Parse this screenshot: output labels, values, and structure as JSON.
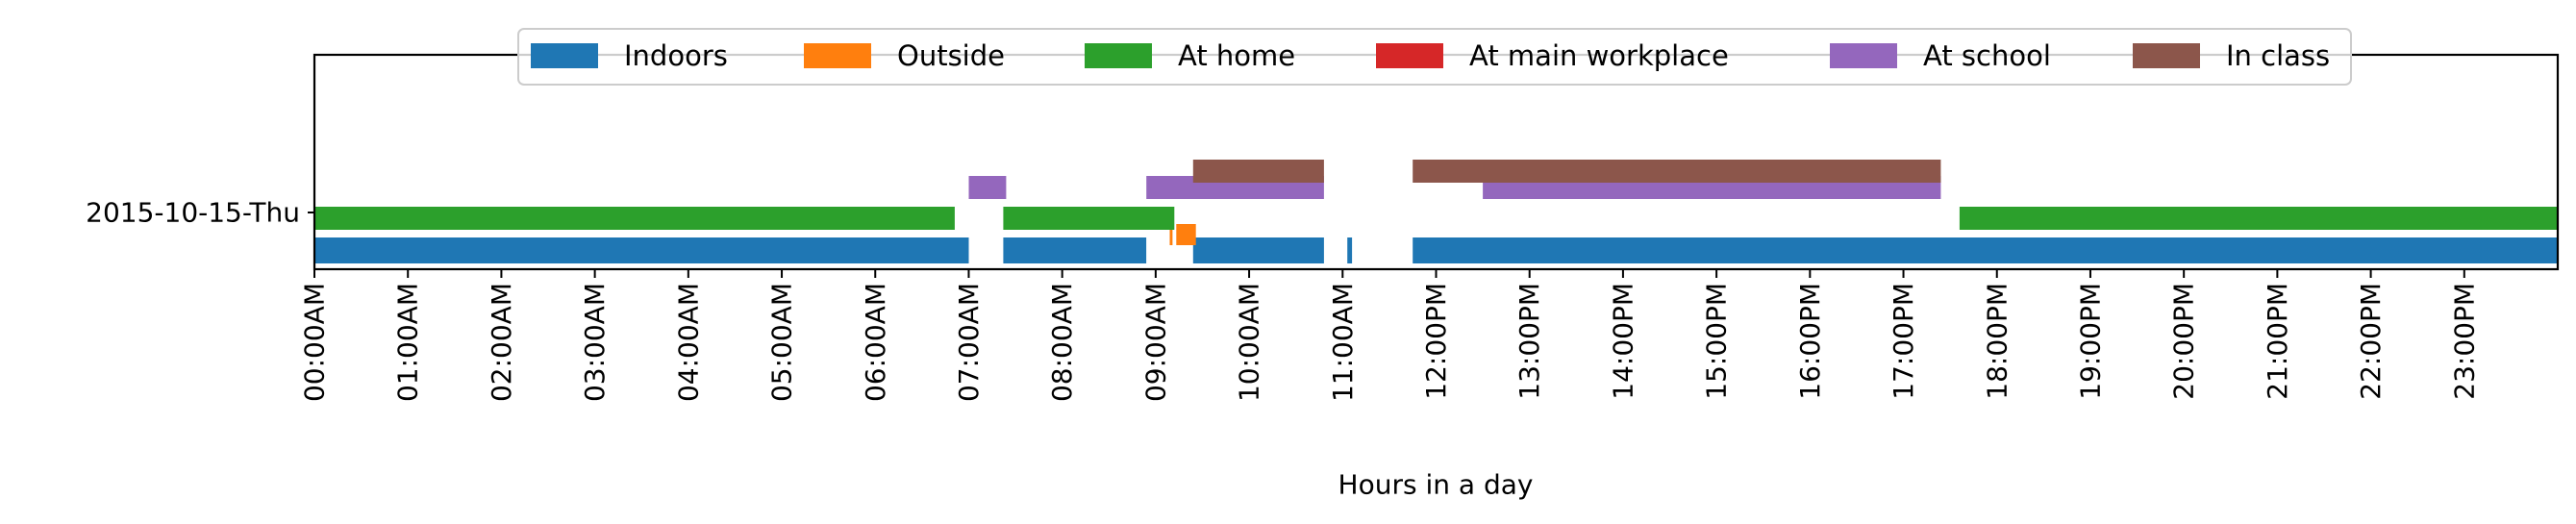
{
  "chart_data": {
    "type": "timeline",
    "row_label": "2015-10-15-Thu",
    "xlabel": "Hours in a day",
    "xlim": [
      0,
      24
    ],
    "x_ticks": [
      {
        "value": 0,
        "label": "00:00AM"
      },
      {
        "value": 1,
        "label": "01:00AM"
      },
      {
        "value": 2,
        "label": "02:00AM"
      },
      {
        "value": 3,
        "label": "03:00AM"
      },
      {
        "value": 4,
        "label": "04:00AM"
      },
      {
        "value": 5,
        "label": "05:00AM"
      },
      {
        "value": 6,
        "label": "06:00AM"
      },
      {
        "value": 7,
        "label": "07:00AM"
      },
      {
        "value": 8,
        "label": "08:00AM"
      },
      {
        "value": 9,
        "label": "09:00AM"
      },
      {
        "value": 10,
        "label": "10:00AM"
      },
      {
        "value": 11,
        "label": "11:00AM"
      },
      {
        "value": 12,
        "label": "12:00PM"
      },
      {
        "value": 13,
        "label": "13:00PM"
      },
      {
        "value": 14,
        "label": "14:00PM"
      },
      {
        "value": 15,
        "label": "15:00PM"
      },
      {
        "value": 16,
        "label": "16:00PM"
      },
      {
        "value": 17,
        "label": "17:00PM"
      },
      {
        "value": 18,
        "label": "18:00PM"
      },
      {
        "value": 19,
        "label": "19:00PM"
      },
      {
        "value": 20,
        "label": "20:00PM"
      },
      {
        "value": 21,
        "label": "21:00PM"
      },
      {
        "value": 22,
        "label": "22:00PM"
      },
      {
        "value": 23,
        "label": "23:00PM"
      }
    ],
    "legend_position": "top-center",
    "series": [
      {
        "name": "Indoors",
        "color": "#1f77b4",
        "intervals": [
          [
            0,
            7.0
          ],
          [
            7.37,
            8.9
          ],
          [
            9.4,
            10.8
          ],
          [
            11.05,
            11.1
          ],
          [
            11.75,
            24
          ]
        ]
      },
      {
        "name": "Outside",
        "color": "#ff7f0e",
        "intervals": [
          [
            9.15,
            9.18
          ],
          [
            9.22,
            9.43
          ]
        ]
      },
      {
        "name": "At home",
        "color": "#2ca02c",
        "intervals": [
          [
            0,
            6.85
          ],
          [
            7.37,
            9.2
          ],
          [
            17.6,
            24
          ]
        ]
      },
      {
        "name": "At main workplace",
        "color": "#d62728",
        "intervals": []
      },
      {
        "name": "At school",
        "color": "#9467bd",
        "intervals": [
          [
            7.0,
            7.4
          ],
          [
            8.9,
            10.8
          ],
          [
            12.5,
            17.4
          ]
        ]
      },
      {
        "name": "In class",
        "color": "#8c564b",
        "intervals": [
          [
            9.4,
            10.8
          ],
          [
            11.75,
            17.4
          ]
        ]
      }
    ]
  }
}
